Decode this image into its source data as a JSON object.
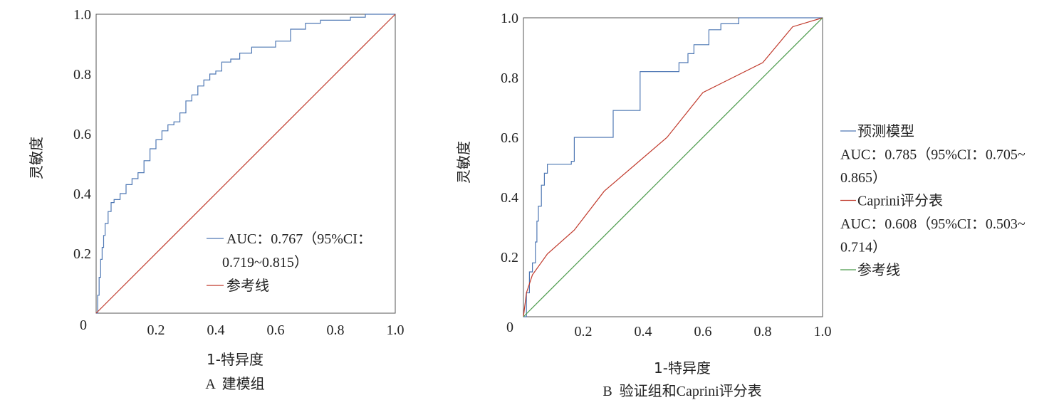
{
  "chart_data": [
    {
      "type": "line",
      "panel": "A",
      "caption": "A  建模组",
      "xlabel": "1-特异度",
      "ylabel": "灵敏度",
      "xlim": [
        0,
        1
      ],
      "ylim": [
        0,
        1
      ],
      "xticks": [
        "0",
        "0.2",
        "0.4",
        "0.6",
        "0.8",
        "1.0"
      ],
      "yticks": [
        "0.2",
        "0.4",
        "0.6",
        "0.8",
        "1.0"
      ],
      "grid": false,
      "legend_position": "bottom-right",
      "legend_lines": [
        {
          "color": "#4f78b4",
          "text": "AUC：0.767（95%CI：",
          "series": 0
        },
        {
          "color": null,
          "text": "0.719~0.815）",
          "series": null
        },
        {
          "color": "#c0392b",
          "text": "参考线",
          "series": 1
        }
      ],
      "series": [
        {
          "name": "AUC：0.767（95%CI：0.719~0.815）",
          "color": "#4f78b4",
          "step": true,
          "x": [
            0,
            0.005,
            0.01,
            0.015,
            0.02,
            0.025,
            0.03,
            0.04,
            0.05,
            0.06,
            0.08,
            0.1,
            0.12,
            0.14,
            0.16,
            0.18,
            0.2,
            0.22,
            0.24,
            0.26,
            0.28,
            0.3,
            0.32,
            0.34,
            0.36,
            0.38,
            0.4,
            0.42,
            0.45,
            0.48,
            0.52,
            0.56,
            0.6,
            0.65,
            0.7,
            0.75,
            0.8,
            0.85,
            0.9,
            0.95,
            1.0
          ],
          "y": [
            0,
            0.06,
            0.12,
            0.18,
            0.22,
            0.26,
            0.3,
            0.34,
            0.37,
            0.38,
            0.4,
            0.43,
            0.45,
            0.47,
            0.51,
            0.55,
            0.58,
            0.61,
            0.63,
            0.64,
            0.67,
            0.71,
            0.73,
            0.76,
            0.78,
            0.8,
            0.81,
            0.84,
            0.85,
            0.87,
            0.89,
            0.89,
            0.91,
            0.95,
            0.97,
            0.98,
            0.98,
            0.99,
            1.0,
            1.0,
            1.0
          ]
        },
        {
          "name": "参考线",
          "color": "#c0392b",
          "step": false,
          "x": [
            0,
            1
          ],
          "y": [
            0,
            1
          ]
        }
      ]
    },
    {
      "type": "line",
      "panel": "B",
      "caption": "B  验证组和Caprini评分表",
      "xlabel": "1-特异度",
      "ylabel": "灵敏度",
      "xlim": [
        0,
        1
      ],
      "ylim": [
        0,
        1
      ],
      "xticks": [
        "0",
        "0.2",
        "0.4",
        "0.6",
        "0.8",
        "1.0"
      ],
      "yticks": [
        "0.2",
        "0.4",
        "0.6",
        "0.8",
        "1.0"
      ],
      "grid": false,
      "legend_position": "outside-right",
      "legend_lines": [
        {
          "color": "#4f78b4",
          "text": "预测模型",
          "series": 0
        },
        {
          "color": null,
          "text": "AUC：0.785（95%CI：0.705~",
          "series": null
        },
        {
          "color": null,
          "text": "0.865）",
          "series": null
        },
        {
          "color": "#c0392b",
          "text": "Caprini评分表",
          "series": 1
        },
        {
          "color": null,
          "text": "AUC：0.608（95%CI：0.503~",
          "series": null
        },
        {
          "color": null,
          "text": "0.714）",
          "series": null
        },
        {
          "color": "#4a9a4a",
          "text": "参考线",
          "series": 2
        }
      ],
      "series": [
        {
          "name": "预测模型 AUC：0.785（95%CI：0.705~0.865）",
          "color": "#4f78b4",
          "step": true,
          "x": [
            0,
            0.01,
            0.02,
            0.03,
            0.04,
            0.045,
            0.05,
            0.06,
            0.07,
            0.08,
            0.16,
            0.17,
            0.29,
            0.3,
            0.37,
            0.39,
            0.5,
            0.52,
            0.55,
            0.57,
            0.6,
            0.62,
            0.66,
            0.7,
            0.72,
            1.0
          ],
          "y": [
            0,
            0.08,
            0.15,
            0.18,
            0.25,
            0.32,
            0.37,
            0.44,
            0.48,
            0.51,
            0.52,
            0.6,
            0.6,
            0.69,
            0.69,
            0.82,
            0.82,
            0.85,
            0.88,
            0.91,
            0.91,
            0.96,
            0.98,
            0.98,
            1.0,
            1.0
          ]
        },
        {
          "name": "Caprini评分表 AUC：0.608（95%CI：0.503~0.714）",
          "color": "#c0392b",
          "step": false,
          "x": [
            0,
            0.01,
            0.03,
            0.08,
            0.17,
            0.27,
            0.48,
            0.6,
            0.8,
            0.9,
            1.0
          ],
          "y": [
            0,
            0.08,
            0.14,
            0.21,
            0.29,
            0.42,
            0.6,
            0.75,
            0.85,
            0.97,
            1.0
          ]
        },
        {
          "name": "参考线",
          "color": "#4a9a4a",
          "step": false,
          "x": [
            0,
            1
          ],
          "y": [
            0,
            1
          ]
        }
      ]
    }
  ]
}
